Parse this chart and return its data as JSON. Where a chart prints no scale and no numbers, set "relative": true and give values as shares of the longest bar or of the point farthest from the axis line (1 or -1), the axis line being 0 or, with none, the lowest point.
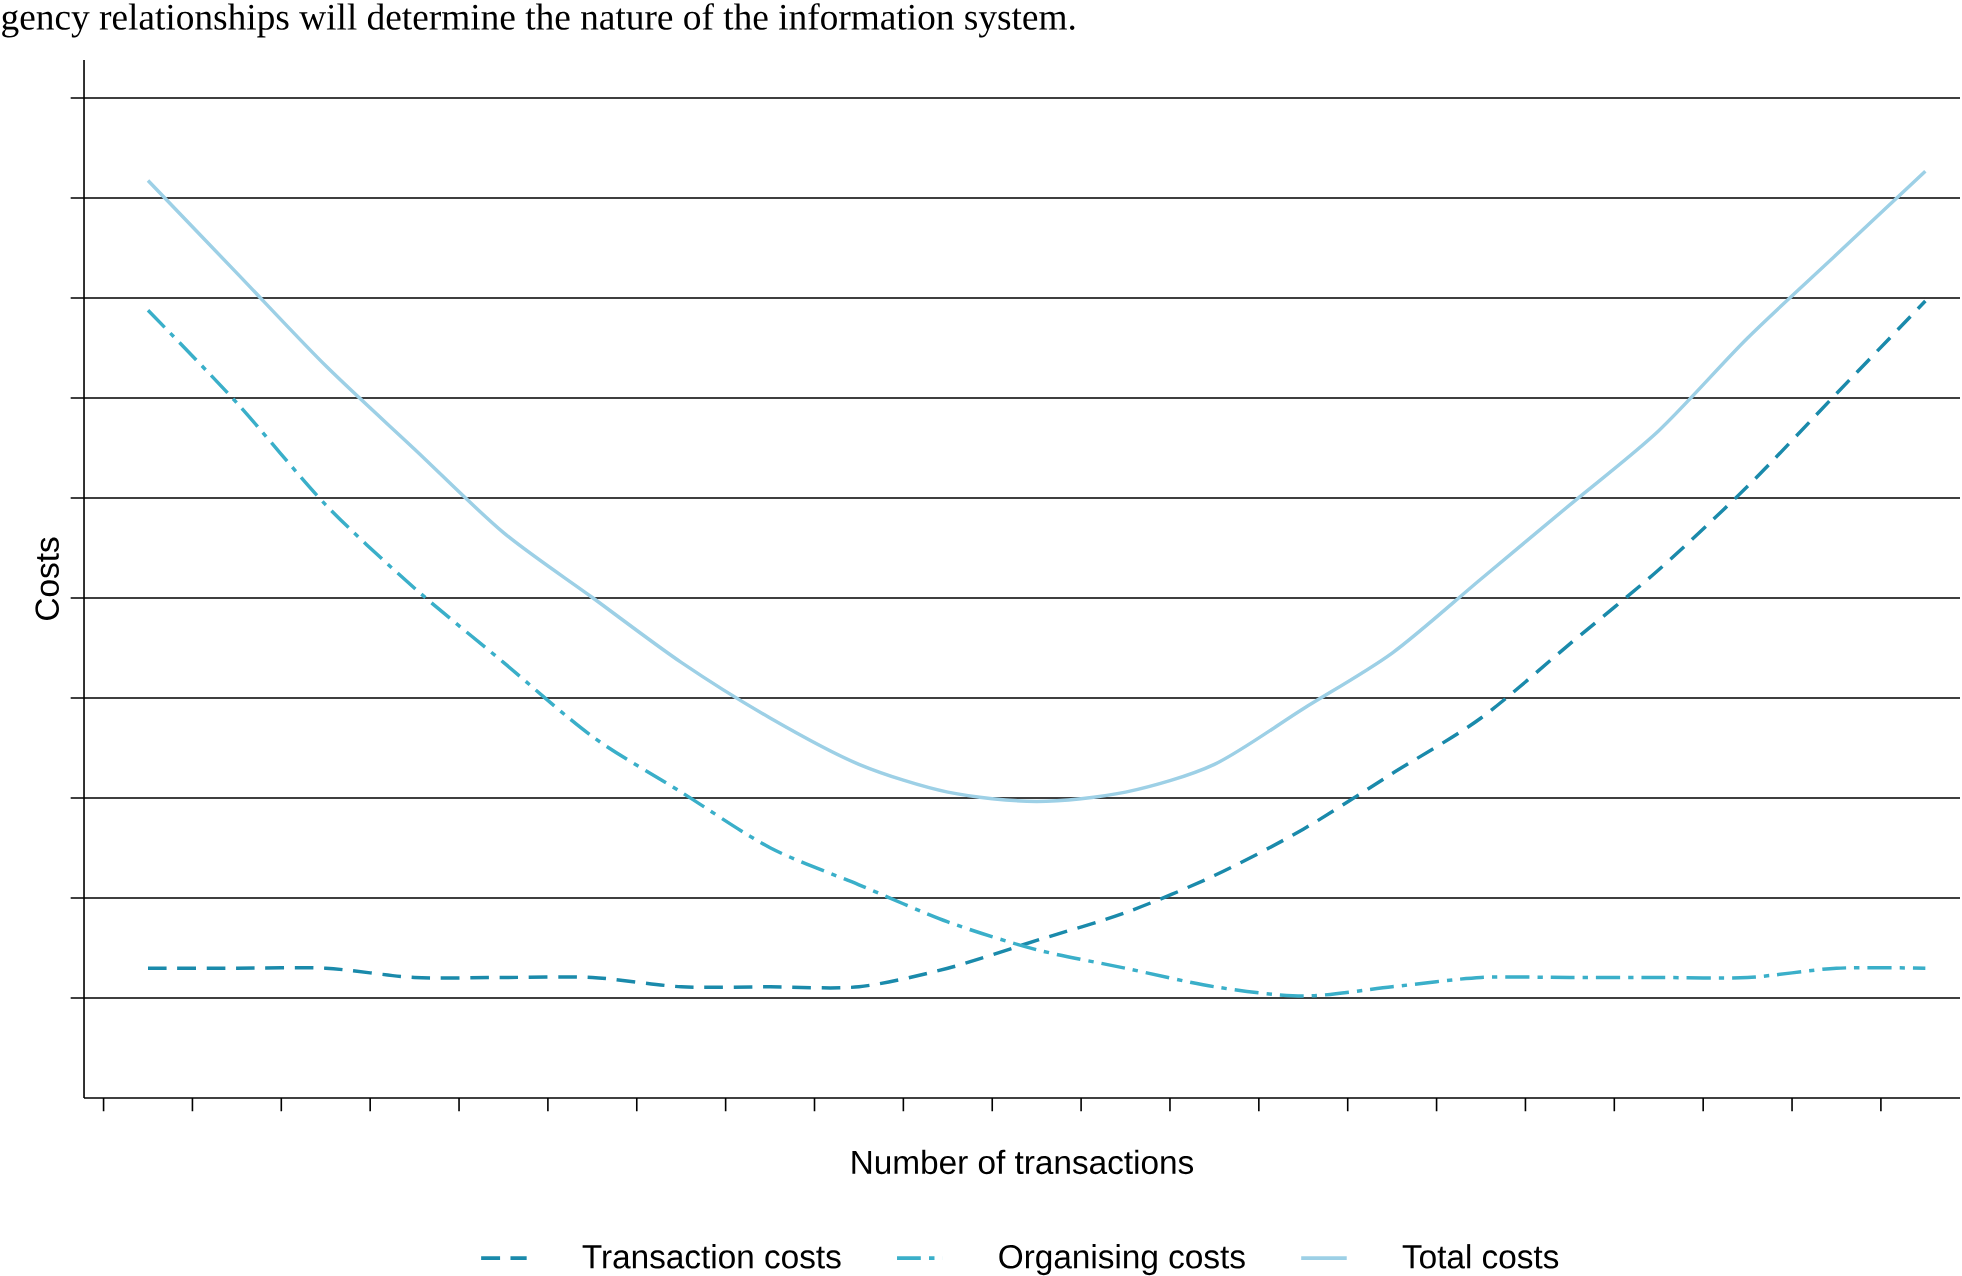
{
  "chart_data": {
    "type": "line",
    "relative": true,
    "xlabel": "Number of transactions",
    "ylabel": "Costs",
    "annotations": [
      "gency relationships will determine the nature of the information system."
    ],
    "categories": [
      null,
      null,
      null,
      null,
      null,
      null,
      null,
      null,
      null,
      null,
      null,
      null,
      null,
      null,
      null,
      null,
      null,
      null,
      null,
      null,
      null
    ],
    "grid": "y",
    "legend": "bottom",
    "marker": "none",
    "series": [
      {
        "name": "Transaction costs",
        "color": "#1a8aab",
        "line_style": "dashed",
        "values": [
          0.14,
          0.14,
          0.14,
          0.13,
          0.13,
          0.13,
          0.12,
          0.12,
          0.12,
          0.14,
          0.17,
          0.2,
          0.24,
          0.29,
          0.35,
          0.41,
          0.49,
          0.57,
          0.66,
          0.76,
          0.86
        ]
      },
      {
        "name": "Organising costs",
        "color": "#3aafc9",
        "line_style": "dashdot",
        "values": [
          0.85,
          0.75,
          0.64,
          0.55,
          0.47,
          0.39,
          0.33,
          0.27,
          0.23,
          0.19,
          0.16,
          0.14,
          0.12,
          0.11,
          0.12,
          0.13,
          0.13,
          0.13,
          0.13,
          0.14,
          0.14
        ]
      },
      {
        "name": "Total costs",
        "color": "#9dd0e6",
        "line_style": "solid",
        "values": [
          0.99,
          0.89,
          0.79,
          0.7,
          0.61,
          0.54,
          0.47,
          0.41,
          0.36,
          0.33,
          0.32,
          0.33,
          0.36,
          0.42,
          0.48,
          0.56,
          0.64,
          0.72,
          0.82,
          0.91,
          1.0
        ]
      }
    ]
  }
}
